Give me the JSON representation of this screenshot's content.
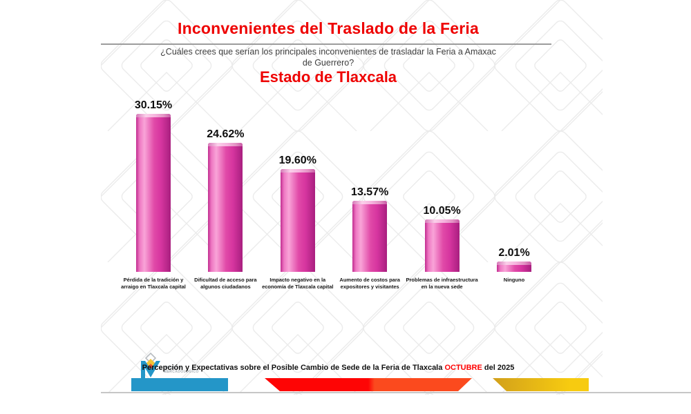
{
  "slide": {
    "title": "Inconvenientes del Traslado de la Feria",
    "question_line1": "¿Cuáles crees que serían los principales inconvenientes de trasladar la Feria a Amaxac",
    "question_line2": "de Guerrero?",
    "region_subtitle": "Estado de Tlaxcala"
  },
  "chart_data": {
    "type": "bar",
    "title": "Estado de Tlaxcala",
    "categories": [
      "Pérdida de la tradición y arraigo en Tlaxcala capital",
      "Dificultad de acceso para algunos ciudadanos",
      "Impacto negativo en la economía de Tlaxcala capital",
      "Aumento de costos para expositores y visitantes",
      "Problemas de infraestructura en la nueva sede",
      "Ninguno"
    ],
    "values": [
      30.15,
      24.62,
      19.6,
      13.57,
      10.05,
      2.01
    ],
    "value_labels": [
      "30.15%",
      "24.62%",
      "19.60%",
      "13.57%",
      "10.05%",
      "2.01%"
    ],
    "xlabel": "",
    "ylabel": "",
    "ylim": [
      0,
      32
    ],
    "grid": false,
    "legend": false,
    "bar_color": "#d6359f"
  },
  "footer": {
    "logo_line1": "IMPULSO",
    "logo_line2": "MERCADOLÓGICO",
    "caption_text": "Percepción y Expectativas sobre el Posible Cambio de Sede de la Feria de Tlaxcala",
    "caption_month": "OCTUBRE",
    "caption_year": "del 2025"
  },
  "colors": {
    "title_red": "#ee0000",
    "highlight_red": "#ff0000",
    "bar_main": "#d6359f",
    "bar_light": "#f9a4d8",
    "bar_dark": "#a81f7f",
    "bar_edge": "#c12d90",
    "ribbon_blue": "#2496c8",
    "ribbon_red": "#fe0505",
    "ribbon_orange": "#fb4a1e",
    "ribbon_yellow_dark": "#d2a01b",
    "ribbon_yellow": "#f7cb10"
  }
}
